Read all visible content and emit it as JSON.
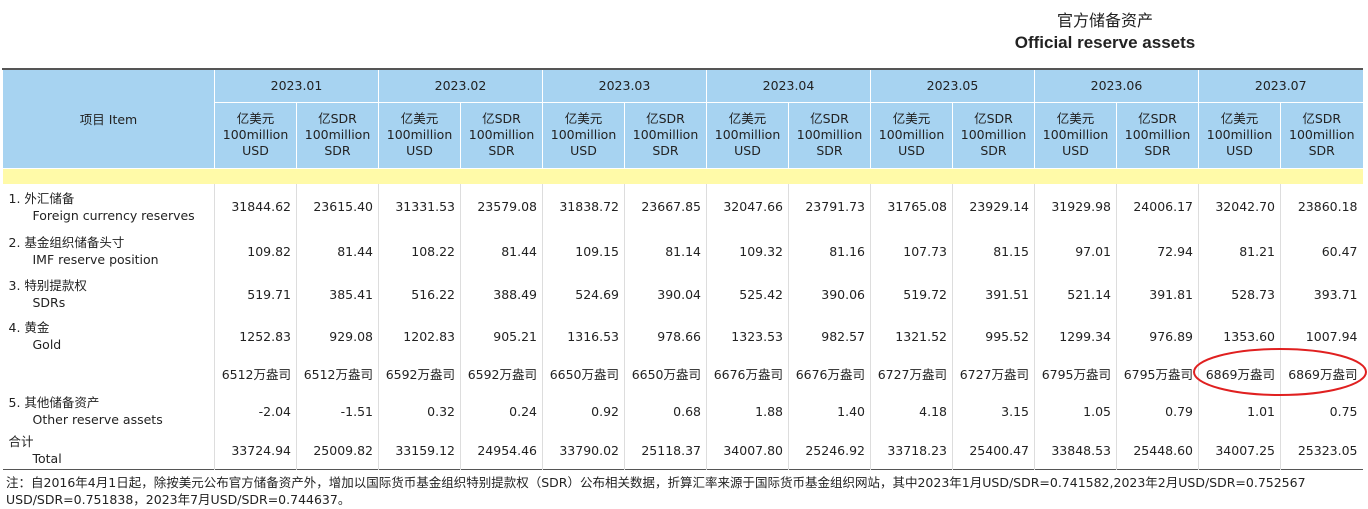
{
  "title_zh": "官方储备资产",
  "title_en": "Official reserve assets",
  "table": {
    "item_header": "项目 Item",
    "months": [
      "2023.01",
      "2023.02",
      "2023.03",
      "2023.04",
      "2023.05",
      "2023.06",
      "2023.07"
    ],
    "unit_headers": [
      {
        "zh": "亿美元",
        "en1": "100million",
        "en2": "USD"
      },
      {
        "zh": "亿SDR",
        "en1": "100million",
        "en2": "SDR"
      }
    ],
    "rows": [
      {
        "label_zh": "1. 外汇储备",
        "label_en": "Foreign currency reserves",
        "values": [
          "31844.62",
          "23615.40",
          "31331.53",
          "23579.08",
          "31838.72",
          "23667.85",
          "32047.66",
          "23791.73",
          "31765.08",
          "23929.14",
          "31929.98",
          "24006.17",
          "32042.70",
          "23860.18"
        ]
      },
      {
        "label_zh": "2. 基金组织储备头寸",
        "label_en": "IMF reserve position",
        "values": [
          "109.82",
          "81.44",
          "108.22",
          "81.44",
          "109.15",
          "81.14",
          "109.32",
          "81.16",
          "107.73",
          "81.15",
          "97.01",
          "72.94",
          "81.21",
          "60.47"
        ]
      },
      {
        "label_zh": "3. 特别提款权",
        "label_en": "SDRs",
        "values": [
          "519.71",
          "385.41",
          "516.22",
          "388.49",
          "524.69",
          "390.04",
          "525.42",
          "390.06",
          "519.72",
          "391.51",
          "521.14",
          "391.81",
          "528.73",
          "393.71"
        ]
      },
      {
        "label_zh": "4. 黄金",
        "label_en": "Gold",
        "values": [
          "1252.83",
          "929.08",
          "1202.83",
          "905.21",
          "1316.53",
          "978.66",
          "1323.53",
          "982.57",
          "1321.52",
          "995.52",
          "1299.34",
          "976.89",
          "1353.60",
          "1007.94"
        ]
      },
      {
        "values": [
          "6512万盎司",
          "6512万盎司",
          "6592万盎司",
          "6592万盎司",
          "6650万盎司",
          "6650万盎司",
          "6676万盎司",
          "6676万盎司",
          "6727万盎司",
          "6727万盎司",
          "6795万盎司",
          "6795万盎司",
          "6869万盎司",
          "6869万盎司"
        ]
      },
      {
        "label_zh": "5. 其他储备资产",
        "label_en": "Other reserve assets",
        "values": [
          "-2.04",
          "-1.51",
          "0.32",
          "0.24",
          "0.92",
          "0.68",
          "1.88",
          "1.40",
          "4.18",
          "3.15",
          "1.05",
          "0.79",
          "1.01",
          "0.75"
        ]
      },
      {
        "label_zh": "合计",
        "label_en": "Total",
        "values": [
          "33724.94",
          "25009.82",
          "33159.12",
          "24954.46",
          "33790.02",
          "25118.37",
          "34007.80",
          "25246.92",
          "33718.23",
          "25400.47",
          "33848.53",
          "25448.60",
          "34007.25",
          "25323.05"
        ]
      }
    ]
  },
  "note": [
    "注：自2016年4月1日起，除按美元公布官方储备资产外，增加以国际货币基金组织特别提款权（SDR）公布相关数据，折算汇率来源于国际货币基金组织网站，其中2023年1月USD/SDR=0.741582,2023年2月USD/SDR=0.752567",
    "USD/SDR=0.751838，2023年7月USD/SDR=0.744637。"
  ]
}
